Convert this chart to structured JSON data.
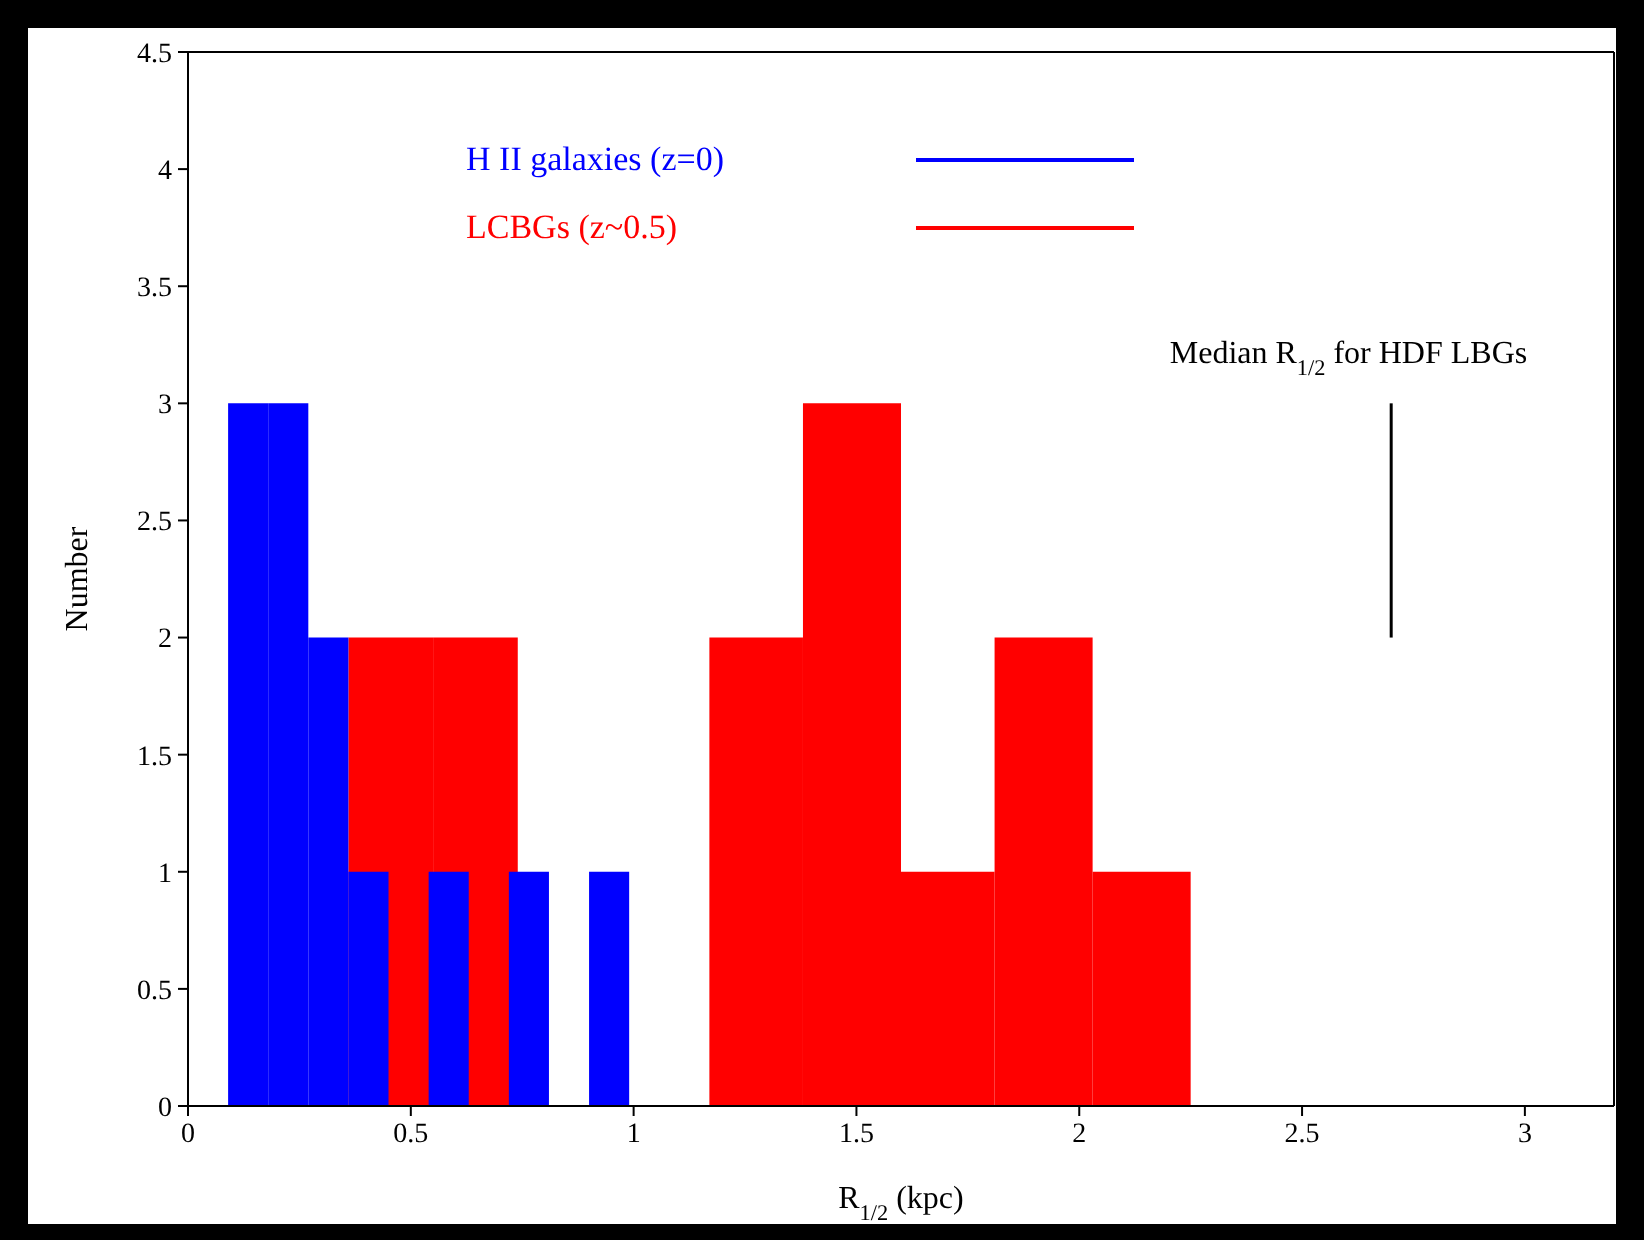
{
  "chart_data": {
    "type": "histogram",
    "xlabel": "R$_{1/2}$ (kpc)",
    "ylabel": "Number",
    "xlim": [
      0,
      3.2
    ],
    "xticks": [
      0,
      0.5,
      1,
      1.5,
      2,
      2.5,
      3
    ],
    "ylim": [
      0,
      4.5
    ],
    "yticks": [
      0,
      0.5,
      1,
      1.5,
      2,
      2.5,
      3,
      3.5,
      4,
      4.5
    ],
    "legend": "top",
    "grid": false,
    "series": [
      {
        "name": "H II galaxies (z=0)",
        "color": "#0000ff",
        "bins": [
          0.09,
          0.18,
          0.27,
          0.36,
          0.45,
          0.54,
          0.63,
          0.72,
          0.81,
          0.9,
          0.99
        ],
        "values": [
          3,
          3,
          2,
          1,
          0,
          1,
          0,
          1,
          0,
          1
        ]
      },
      {
        "name": "LCBGs (z~0.5)",
        "color": "#ff0000",
        "bins": [
          0.36,
          0.55,
          0.74,
          1.17,
          1.38,
          1.6,
          1.81,
          2.03,
          2.25
        ],
        "values": [
          2,
          2,
          0,
          2,
          3,
          1,
          2,
          1
        ]
      },
      {
        "type": "line",
        "color": "#000000",
        "x": [
          2.7,
          2.7
        ],
        "values": [
          2,
          3
        ]
      }
    ],
    "annotations": [
      {
        "text": "Median R$_{1/2}$ for HDF LBGs",
        "x": 2.7,
        "y": 3
      }
    ]
  }
}
